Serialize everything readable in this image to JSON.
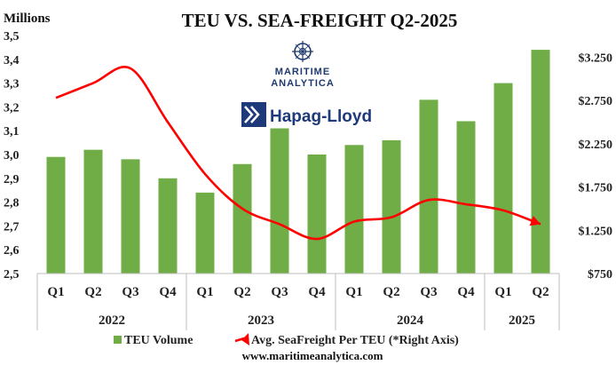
{
  "chart_data": {
    "type": "bar+line",
    "title": "TEU VS. SEA-FREIGHT Q2-2025",
    "left_axis_unit": "Millions",
    "left_ticks": [
      "3,5",
      "3,4",
      "3,3",
      "3,2",
      "3,1",
      "3,0",
      "2,9",
      "2,8",
      "2,7",
      "2,6",
      "2,5"
    ],
    "left_ylim": [
      2.5,
      3.5
    ],
    "right_ticks": [
      "$3.250",
      "$2.750",
      "$2.250",
      "$1.750",
      "$1.250",
      "$750"
    ],
    "right_tick_values": [
      3250,
      2750,
      2250,
      1750,
      1250,
      750
    ],
    "right_ylim": [
      750,
      3500
    ],
    "quarters": [
      "Q1",
      "Q2",
      "Q3",
      "Q4",
      "Q1",
      "Q2",
      "Q3",
      "Q4",
      "Q1",
      "Q2",
      "Q3",
      "Q4",
      "Q1",
      "Q2"
    ],
    "years": [
      {
        "label": "2022",
        "span": 4
      },
      {
        "label": "2023",
        "span": 4
      },
      {
        "label": "2024",
        "span": 4
      },
      {
        "label": "2025",
        "span": 2
      }
    ],
    "series": [
      {
        "name": "TEU Volume",
        "axis": "left",
        "type": "bar",
        "color": "#70ad47",
        "values": [
          2.99,
          3.02,
          2.98,
          2.9,
          2.84,
          2.96,
          3.11,
          3.0,
          3.04,
          3.06,
          3.23,
          3.14,
          3.3,
          3.44
        ]
      },
      {
        "name": "Avg. SeaFreight Per TEU (*Right Axis)",
        "axis": "right",
        "type": "line",
        "color": "#ff0000",
        "values": [
          2780,
          2950,
          3120,
          2500,
          1900,
          1500,
          1320,
          1150,
          1350,
          1400,
          1600,
          1550,
          1480,
          1320
        ]
      }
    ],
    "legend": [
      "TEU Volume",
      "Avg. SeaFreight Per TEU (*Right Axis)"
    ],
    "grid": false
  },
  "logos": {
    "maritime_line1": "MARITIME",
    "maritime_line2": "ANALYTICA",
    "hapag": "Hapag-Lloyd"
  },
  "website": "www.maritimeanalytica.com",
  "colors": {
    "bar": "#70ad47",
    "line": "#ff0000",
    "logo_blue": "#1f3a6e"
  }
}
